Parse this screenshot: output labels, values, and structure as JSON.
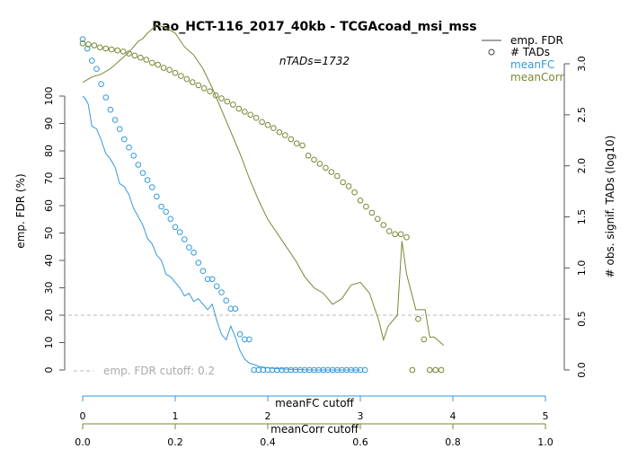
{
  "chart_data": {
    "type": "line",
    "title": "Rao_HCT-116_2017_40kb - TCGAcoad_msi_mss",
    "subtitle": "nTADs=1732",
    "ylabel_left": "emp. FDR (%)",
    "ylabel_right": "# obs. signif. TADs (log10)",
    "xlabel_fc": "meanFC cutoff",
    "xlabel_corr": "meanCorr cutoff",
    "cutoff_label": "emp. FDR cutoff: 0.2",
    "cutoff_value": 20,
    "ylim_left": [
      0,
      100
    ],
    "ylim_right": [
      0,
      3.0
    ],
    "left_ticks": [
      "0",
      "10",
      "20",
      "30",
      "40",
      "50",
      "60",
      "70",
      "80",
      "90",
      "100"
    ],
    "right_ticks": [
      "0.0",
      "0.5",
      "1.0",
      "1.5",
      "2.0",
      "2.5",
      "3.0"
    ],
    "fc_ticks": [
      "0",
      "1",
      "2",
      "3",
      "4",
      "5"
    ],
    "corr_ticks": [
      "0.0",
      "0.2",
      "0.4",
      "0.6",
      "0.8",
      "1.0"
    ],
    "xlim_fc": [
      0,
      5
    ],
    "xlim_corr": [
      0,
      1
    ],
    "legend": [
      {
        "label": "emp. FDR",
        "key": "line"
      },
      {
        "label": "# TADs",
        "key": "circle"
      },
      {
        "label": "meanFC",
        "key": "text"
      },
      {
        "label": "meanCorr",
        "key": "text"
      }
    ],
    "colors": {
      "meanFC": "#3399dd",
      "meanCorr": "#778833",
      "cutoff": "#bbbbbb",
      "axis": "#555555"
    },
    "series": [
      {
        "name": "meanFC",
        "x_axis": "meanFC cutoff",
        "fdr_x": [
          0,
          0.03,
          0.06,
          0.1,
          0.15,
          0.2,
          0.25,
          0.3,
          0.35,
          0.4,
          0.45,
          0.5,
          0.55,
          0.6,
          0.65,
          0.7,
          0.75,
          0.8,
          0.85,
          0.9,
          0.95,
          1.0,
          1.05,
          1.1,
          1.15,
          1.2,
          1.25,
          1.3,
          1.35,
          1.4,
          1.45,
          1.5,
          1.55,
          1.6,
          1.65,
          1.7,
          1.75,
          1.8,
          1.85,
          1.9,
          2.0,
          2.1,
          2.2,
          2.3,
          2.4,
          2.5,
          2.6,
          2.7,
          2.8,
          2.9,
          3.0
        ],
        "fdr_y": [
          100,
          99,
          97,
          89,
          88,
          84,
          79,
          77,
          74,
          68,
          67,
          64,
          59,
          56,
          53,
          48,
          46,
          42,
          40,
          35,
          34,
          32,
          30,
          27,
          28,
          25,
          26,
          24,
          22,
          24,
          18,
          13,
          11,
          16,
          12,
          7,
          4,
          2.5,
          2,
          1.3,
          0.8,
          0.5,
          0.3,
          0.2,
          0.1,
          0,
          0,
          0,
          0,
          0,
          0
        ],
        "tads_x": [
          0,
          0.05,
          0.1,
          0.15,
          0.2,
          0.25,
          0.3,
          0.35,
          0.4,
          0.45,
          0.5,
          0.55,
          0.6,
          0.65,
          0.7,
          0.75,
          0.8,
          0.85,
          0.9,
          0.95,
          1.0,
          1.05,
          1.1,
          1.15,
          1.2,
          1.25,
          1.3,
          1.35,
          1.4,
          1.45,
          1.5,
          1.55,
          1.6,
          1.65,
          1.7,
          1.75,
          1.8,
          1.85,
          1.9,
          1.95,
          2.0,
          2.05,
          2.1,
          2.15,
          2.2,
          2.25,
          2.3,
          2.35,
          2.4,
          2.45,
          2.5,
          2.55,
          2.6,
          2.65,
          2.7,
          2.75,
          2.8,
          2.85,
          2.9,
          2.95,
          3.0,
          3.05
        ],
        "tads_y": [
          3.24,
          3.15,
          3.03,
          2.95,
          2.8,
          2.67,
          2.55,
          2.45,
          2.36,
          2.26,
          2.18,
          2.1,
          2.01,
          1.93,
          1.86,
          1.79,
          1.7,
          1.6,
          1.55,
          1.48,
          1.4,
          1.35,
          1.28,
          1.2,
          1.15,
          1.05,
          0.97,
          0.89,
          0.89,
          0.82,
          0.76,
          0.68,
          0.6,
          0.6,
          0.35,
          0.3,
          0.3,
          0,
          0,
          0,
          0,
          0,
          0,
          0,
          0,
          0,
          0,
          0,
          0,
          0,
          0,
          0,
          0,
          0,
          0,
          0,
          0,
          0,
          0,
          0,
          0,
          0
        ]
      },
      {
        "name": "meanCorr",
        "x_axis": "meanCorr cutoff",
        "fdr_x": [
          0,
          0.02,
          0.04,
          0.06,
          0.08,
          0.1,
          0.12,
          0.13,
          0.14,
          0.16,
          0.18,
          0.2,
          0.22,
          0.24,
          0.26,
          0.28,
          0.3,
          0.32,
          0.34,
          0.36,
          0.38,
          0.4,
          0.42,
          0.44,
          0.46,
          0.48,
          0.5,
          0.52,
          0.54,
          0.56,
          0.58,
          0.6,
          0.62,
          0.64,
          0.65,
          0.66,
          0.68,
          0.69,
          0.7,
          0.72,
          0.74,
          0.75,
          0.76,
          0.78
        ],
        "fdr_y": [
          105,
          107,
          108,
          110,
          113,
          116,
          120,
          121,
          123,
          126,
          125,
          123,
          118,
          115,
          110,
          103,
          95,
          87,
          79,
          70,
          62,
          55,
          50,
          45,
          40,
          34,
          30,
          28,
          24,
          26,
          31,
          32,
          28,
          18,
          11,
          16,
          20,
          47,
          35,
          22,
          22,
          12,
          12,
          9
        ],
        "tads_x": [
          0,
          0.0125,
          0.025,
          0.0375,
          0.05,
          0.0625,
          0.075,
          0.0875,
          0.1,
          0.1125,
          0.125,
          0.1375,
          0.15,
          0.1625,
          0.175,
          0.1875,
          0.2,
          0.2125,
          0.225,
          0.2375,
          0.25,
          0.2625,
          0.275,
          0.2875,
          0.3,
          0.3125,
          0.325,
          0.3375,
          0.35,
          0.3625,
          0.375,
          0.3875,
          0.4,
          0.4125,
          0.425,
          0.4375,
          0.45,
          0.4625,
          0.475,
          0.4875,
          0.5,
          0.5125,
          0.525,
          0.5375,
          0.55,
          0.5625,
          0.575,
          0.5875,
          0.6,
          0.6125,
          0.625,
          0.6375,
          0.65,
          0.6625,
          0.675,
          0.6875,
          0.7,
          0.7125,
          0.725,
          0.7375,
          0.75,
          0.7625,
          0.775
        ],
        "tads_y": [
          3.2,
          3.19,
          3.18,
          3.16,
          3.15,
          3.14,
          3.13,
          3.12,
          3.1,
          3.08,
          3.06,
          3.04,
          3.01,
          2.99,
          2.96,
          2.94,
          2.91,
          2.88,
          2.85,
          2.82,
          2.79,
          2.76,
          2.73,
          2.69,
          2.66,
          2.63,
          2.6,
          2.56,
          2.53,
          2.5,
          2.47,
          2.43,
          2.4,
          2.37,
          2.33,
          2.3,
          2.26,
          2.22,
          2.2,
          2.1,
          2.06,
          2.02,
          1.98,
          1.94,
          1.9,
          1.84,
          1.8,
          1.74,
          1.66,
          1.6,
          1.54,
          1.48,
          1.42,
          1.36,
          1.33,
          1.33,
          1.3,
          0,
          0.5,
          0.3,
          0,
          0,
          0
        ]
      }
    ]
  }
}
